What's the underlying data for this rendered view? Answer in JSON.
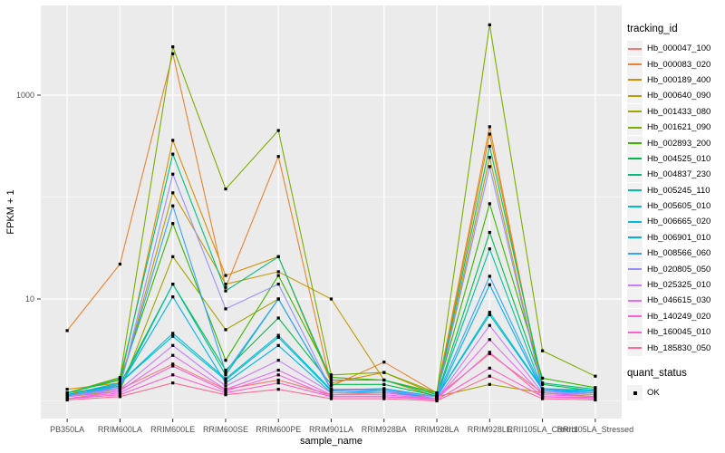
{
  "style": {
    "panel_bg": "#EBEBEB",
    "grid_color": "#FFFFFF",
    "legend_key_bg": "#F2F2F2",
    "axis_text_color": "#4D4D4D",
    "point_color": "#000000"
  },
  "chart_data": {
    "type": "line",
    "title": "",
    "xlabel": "sample_name",
    "ylabel": "FPKM + 1",
    "y_scale": "log10",
    "y_ticks": [
      10,
      1000
    ],
    "y_tick_labels": [
      "10",
      "1000"
    ],
    "y_minor_ticks": [
      1,
      100
    ],
    "ylim": [
      0.67,
      7500
    ],
    "grid": "on",
    "legend_position": "right",
    "legend_title": "tracking_id",
    "categories": [
      "PB350LA",
      "RRIM600LA",
      "RRIM600LE",
      "RRIM600SE",
      "RRIM600PE",
      "RRIM901LA",
      "RRIM928BA",
      "RRIM928LA",
      "RRIM928LE",
      "RRII105LA_Control",
      "RRII105LA_Stressed"
    ],
    "series": [
      {
        "name": "Hb_000047_100",
        "color": "#F8766D",
        "values": [
          1.15,
          1.3,
          2.3,
          1.3,
          1.6,
          1.15,
          1.2,
          1.1,
          2.9,
          1.2,
          1.1
        ]
      },
      {
        "name": "Hb_000083_020",
        "color": "#EA8331",
        "values": [
          4.9,
          22,
          2550,
          13,
          250,
          1.4,
          2.4,
          1.2,
          490,
          1.25,
          1.15
        ]
      },
      {
        "name": "Hb_000189_400",
        "color": "#D89000",
        "values": [
          1.3,
          1.5,
          360,
          17,
          26,
          1.5,
          1.9,
          1.15,
          415,
          1.3,
          1.2
        ]
      },
      {
        "name": "Hb_000640_090",
        "color": "#C09B00",
        "values": [
          1.2,
          1.4,
          110,
          14,
          18.5,
          10,
          1.6,
          1.1,
          245,
          1.25,
          1.15
        ]
      },
      {
        "name": "Hb_001433_080",
        "color": "#A3A500",
        "values": [
          1.1,
          1.25,
          26,
          5,
          10,
          1.3,
          1.25,
          1.1,
          1.45,
          1.2,
          1.1
        ]
      },
      {
        "name": "Hb_001621_090",
        "color": "#7CAE00",
        "values": [
          1.2,
          1.7,
          2980,
          120,
          450,
          1.8,
          1.9,
          1.2,
          4900,
          3.1,
          1.75
        ]
      },
      {
        "name": "Hb_002893_200",
        "color": "#39B600",
        "values": [
          1.2,
          1.6,
          55,
          2.5,
          17,
          1.7,
          1.6,
          1.2,
          86,
          1.67,
          1.35
        ]
      },
      {
        "name": "Hb_004525_010",
        "color": "#00BB4E",
        "values": [
          1.15,
          1.45,
          14,
          2.0,
          6.5,
          1.45,
          1.45,
          1.12,
          45,
          1.45,
          1.25
        ]
      },
      {
        "name": "Hb_004837_230",
        "color": "#00BF7D",
        "values": [
          1.2,
          1.65,
          264,
          12,
          26,
          1.6,
          1.6,
          1.15,
          315,
          1.5,
          1.3
        ]
      },
      {
        "name": "Hb_005245_110",
        "color": "#00C1A3",
        "values": [
          1.12,
          1.35,
          14,
          1.8,
          10,
          1.3,
          1.3,
          1.1,
          31,
          1.3,
          1.2
        ]
      },
      {
        "name": "Hb_005605_010",
        "color": "#00BFC4",
        "values": [
          1.15,
          1.5,
          4.3,
          1.6,
          4.2,
          1.25,
          1.3,
          1.1,
          7.0,
          1.3,
          1.25
        ]
      },
      {
        "name": "Hb_006665_020",
        "color": "#00BAE0",
        "values": [
          1.15,
          1.5,
          4.6,
          1.65,
          4.4,
          1.28,
          1.32,
          1.1,
          7.4,
          1.32,
          1.27
        ]
      },
      {
        "name": "Hb_006901_010",
        "color": "#00B0F6",
        "values": [
          1.1,
          1.4,
          10.5,
          1.5,
          3.5,
          1.2,
          1.25,
          1.05,
          13.8,
          1.25,
          1.2
        ]
      },
      {
        "name": "Hb_008566_060",
        "color": "#35A2FF",
        "values": [
          1.1,
          1.45,
          82,
          1.9,
          10,
          1.3,
          1.3,
          1.1,
          16.7,
          1.3,
          1.2
        ]
      },
      {
        "name": "Hb_020805_050",
        "color": "#9590FF",
        "values": [
          1.1,
          1.35,
          168,
          8,
          14,
          1.3,
          1.25,
          1.1,
          199,
          1.25,
          1.15
        ]
      },
      {
        "name": "Hb_025325_010",
        "color": "#C77CFF",
        "values": [
          1.1,
          1.3,
          3.5,
          1.4,
          2.5,
          1.2,
          1.2,
          1.05,
          5.5,
          1.2,
          1.15
        ]
      },
      {
        "name": "Hb_046615_030",
        "color": "#E76BF3",
        "values": [
          1.05,
          1.25,
          2.8,
          1.3,
          2.0,
          1.15,
          1.15,
          1.05,
          4.0,
          1.15,
          1.1
        ]
      },
      {
        "name": "Hb_140249_020",
        "color": "#FA62DB",
        "values": [
          1.05,
          1.2,
          2.2,
          1.25,
          1.8,
          1.1,
          1.1,
          1.05,
          3.0,
          1.1,
          1.08
        ]
      },
      {
        "name": "Hb_160045_010",
        "color": "#FF61CC",
        "values": [
          1.05,
          1.15,
          1.8,
          1.2,
          1.5,
          1.1,
          1.1,
          1.02,
          2.1,
          1.1,
          1.05
        ]
      },
      {
        "name": "Hb_185830_050",
        "color": "#FF6A98",
        "values": [
          1.02,
          1.1,
          1.5,
          1.15,
          1.3,
          1.05,
          1.05,
          1.0,
          1.75,
          1.05,
          1.02
        ]
      }
    ],
    "quant_legend": {
      "title": "quant_status",
      "items": [
        "OK"
      ]
    }
  }
}
